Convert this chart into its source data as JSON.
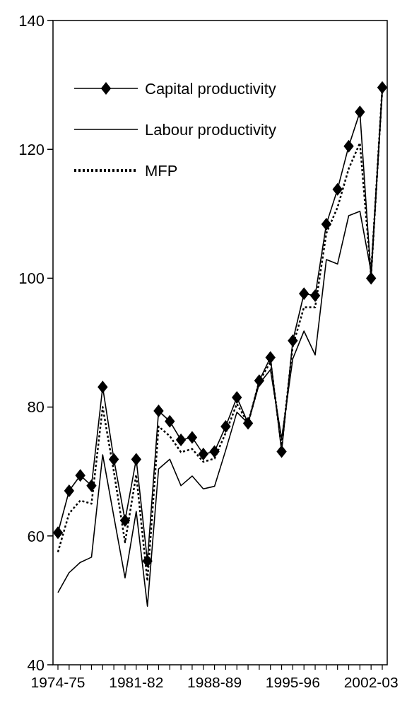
{
  "chart_data": {
    "type": "line",
    "categories": [
      "1974-75",
      null,
      null,
      null,
      null,
      null,
      null,
      "1981-82",
      null,
      null,
      null,
      null,
      null,
      null,
      "1988-89",
      null,
      null,
      null,
      null,
      null,
      null,
      "1995-96",
      null,
      null,
      null,
      null,
      null,
      null,
      "2002-03",
      null
    ],
    "series": [
      {
        "name": "Capital productivity",
        "color": "#000000",
        "marker": "diamond",
        "line_style": "solid",
        "values": [
          60.5,
          67.0,
          69.4,
          67.8,
          83.1,
          71.9,
          62.4,
          71.9,
          56.1,
          79.4,
          77.8,
          74.9,
          75.3,
          72.7,
          73.1,
          77.0,
          81.5,
          77.5,
          84.1,
          87.7,
          73.1,
          90.3,
          97.6,
          97.3,
          108.4,
          113.8,
          120.5,
          125.8,
          100.0,
          129.6
        ]
      },
      {
        "name": "Labour productivity",
        "color": "#000000",
        "marker": "none",
        "line_style": "solid",
        "values": [
          51.2,
          54.3,
          55.9,
          56.7,
          72.6,
          63.0,
          53.5,
          63.8,
          49.1,
          70.4,
          71.9,
          67.8,
          69.3,
          67.3,
          67.7,
          73.3,
          79.2,
          77.5,
          83.6,
          85.8,
          75.1,
          87.5,
          91.8,
          88.1,
          102.9,
          102.2,
          109.7,
          110.4,
          101.0,
          129.0
        ]
      },
      {
        "name": "MFP",
        "color": "#000000",
        "marker": "none",
        "line_style": "dotted",
        "values": [
          57.5,
          63.5,
          65.5,
          65.0,
          80.0,
          70.0,
          59.0,
          69.5,
          53.0,
          77.0,
          75.5,
          73.0,
          73.5,
          71.5,
          72.0,
          76.0,
          80.5,
          77.5,
          84.0,
          87.0,
          74.0,
          89.5,
          95.5,
          95.5,
          107.0,
          111.0,
          117.0,
          121.0,
          100.5,
          129.5
        ]
      }
    ],
    "ylim": [
      40,
      140
    ],
    "yticks": [
      40,
      60,
      80,
      100,
      120,
      140
    ],
    "grid": false,
    "legend": "top left"
  }
}
